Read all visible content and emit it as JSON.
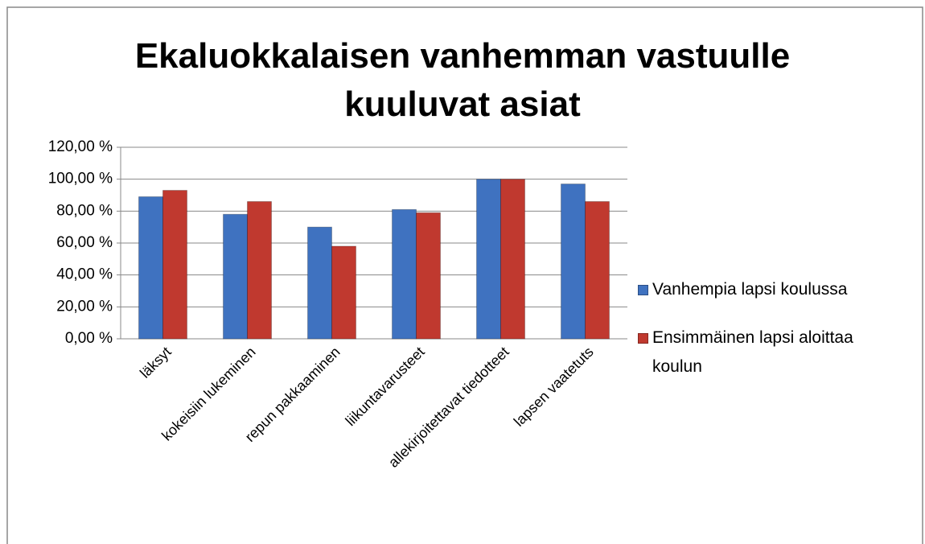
{
  "chart_data": {
    "type": "bar",
    "title": "Ekaluokkalaisen vanhemman vastuulle kuuluvat asiat",
    "categories": [
      "läksyt",
      "kokeisiin lukeminen",
      "repun pakkaaminen",
      "liikuntavarusteet",
      "allekirjoitettavat tiedotteet",
      "lapsen vaatetuts"
    ],
    "series": [
      {
        "name": "Vanhempia lapsi koulussa",
        "color": "#3f72c0",
        "values": [
          89,
          78,
          70,
          81,
          100,
          97
        ]
      },
      {
        "name": "Ensimmäinen lapsi aloittaa koulun",
        "color": "#c0392f",
        "values": [
          93,
          86,
          58,
          79,
          100,
          86
        ]
      }
    ],
    "ylim": [
      0,
      120
    ],
    "yticks": [
      {
        "value": 0,
        "label": "0,00 %"
      },
      {
        "value": 20,
        "label": "20,00 %"
      },
      {
        "value": 40,
        "label": "40,00 %"
      },
      {
        "value": 60,
        "label": "60,00 %"
      },
      {
        "value": 80,
        "label": "80,00 %"
      },
      {
        "value": 100,
        "label": "100,00 %"
      },
      {
        "value": 120,
        "label": "120,00 %"
      }
    ],
    "grid": true,
    "legend": "right"
  }
}
